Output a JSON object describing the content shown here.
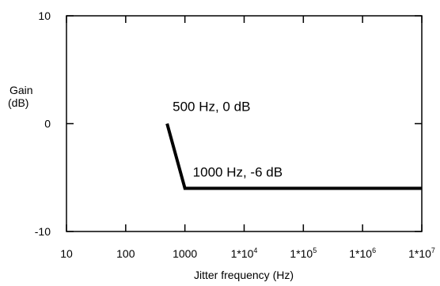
{
  "chart_data": {
    "type": "line",
    "x_scale": "log",
    "xlabel": "Jitter frequency (Hz)",
    "ylabel": [
      "Gain",
      "(dB)"
    ],
    "xlim": [
      10,
      10000000
    ],
    "ylim": [
      -10,
      10
    ],
    "x_ticks": [
      {
        "value": 10,
        "label": "10"
      },
      {
        "value": 100,
        "label": "100"
      },
      {
        "value": 1000,
        "label": "1000"
      },
      {
        "value": 10000,
        "label": "1*10",
        "sup": "4"
      },
      {
        "value": 100000,
        "label": "1*10",
        "sup": "5"
      },
      {
        "value": 1000000,
        "label": "1*10",
        "sup": "6"
      },
      {
        "value": 10000000,
        "label": "1*10",
        "sup": "7"
      }
    ],
    "y_ticks": [
      {
        "value": 10,
        "label": "10"
      },
      {
        "value": 0,
        "label": "0"
      },
      {
        "value": -10,
        "label": "-10"
      }
    ],
    "grid": false,
    "series": [
      {
        "color": "#000000",
        "x": [
          500,
          1000,
          10000000
        ],
        "y": [
          0,
          -6,
          -6
        ]
      }
    ],
    "annotations": [
      {
        "text": "500 Hz, 0 dB",
        "x": 500,
        "y": 0
      },
      {
        "text": "1000 Hz, -6 dB",
        "x": 1000,
        "y": -6
      }
    ]
  }
}
